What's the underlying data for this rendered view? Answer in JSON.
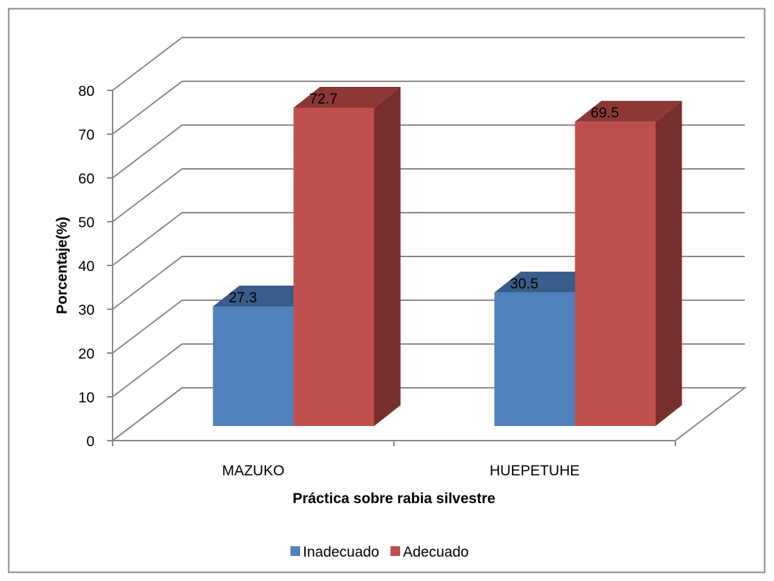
{
  "colors": {
    "series_front": [
      "#4F81BD",
      "#C0504D"
    ],
    "series_top": [
      "#385D8A",
      "#8C3836"
    ],
    "series_side": [
      "#2F4F77",
      "#772F2D"
    ],
    "grid": "#868686",
    "frame": "#868686",
    "text": "#000000"
  },
  "chart_data": {
    "type": "bar",
    "title": "",
    "categories": [
      "MAZUKO",
      "HUEPETUHE"
    ],
    "series": [
      {
        "name": "Inadecuado",
        "values": [
          27.3,
          30.5
        ]
      },
      {
        "name": "Adecuado",
        "values": [
          72.7,
          69.5
        ]
      }
    ],
    "xlabel": "Práctica sobre rabia silvestre",
    "ylabel": "Porcentaje(%)",
    "ylim": [
      0,
      80
    ],
    "yticks": [
      "0",
      "10",
      "20",
      "30",
      "40",
      "50",
      "60",
      "70",
      "80"
    ],
    "data_labels": [
      [
        "27.3",
        "30.5"
      ],
      [
        "72.7",
        "69.5"
      ]
    ],
    "grid": true,
    "legend_position": "bottom",
    "style": "3d-clustered-column"
  }
}
